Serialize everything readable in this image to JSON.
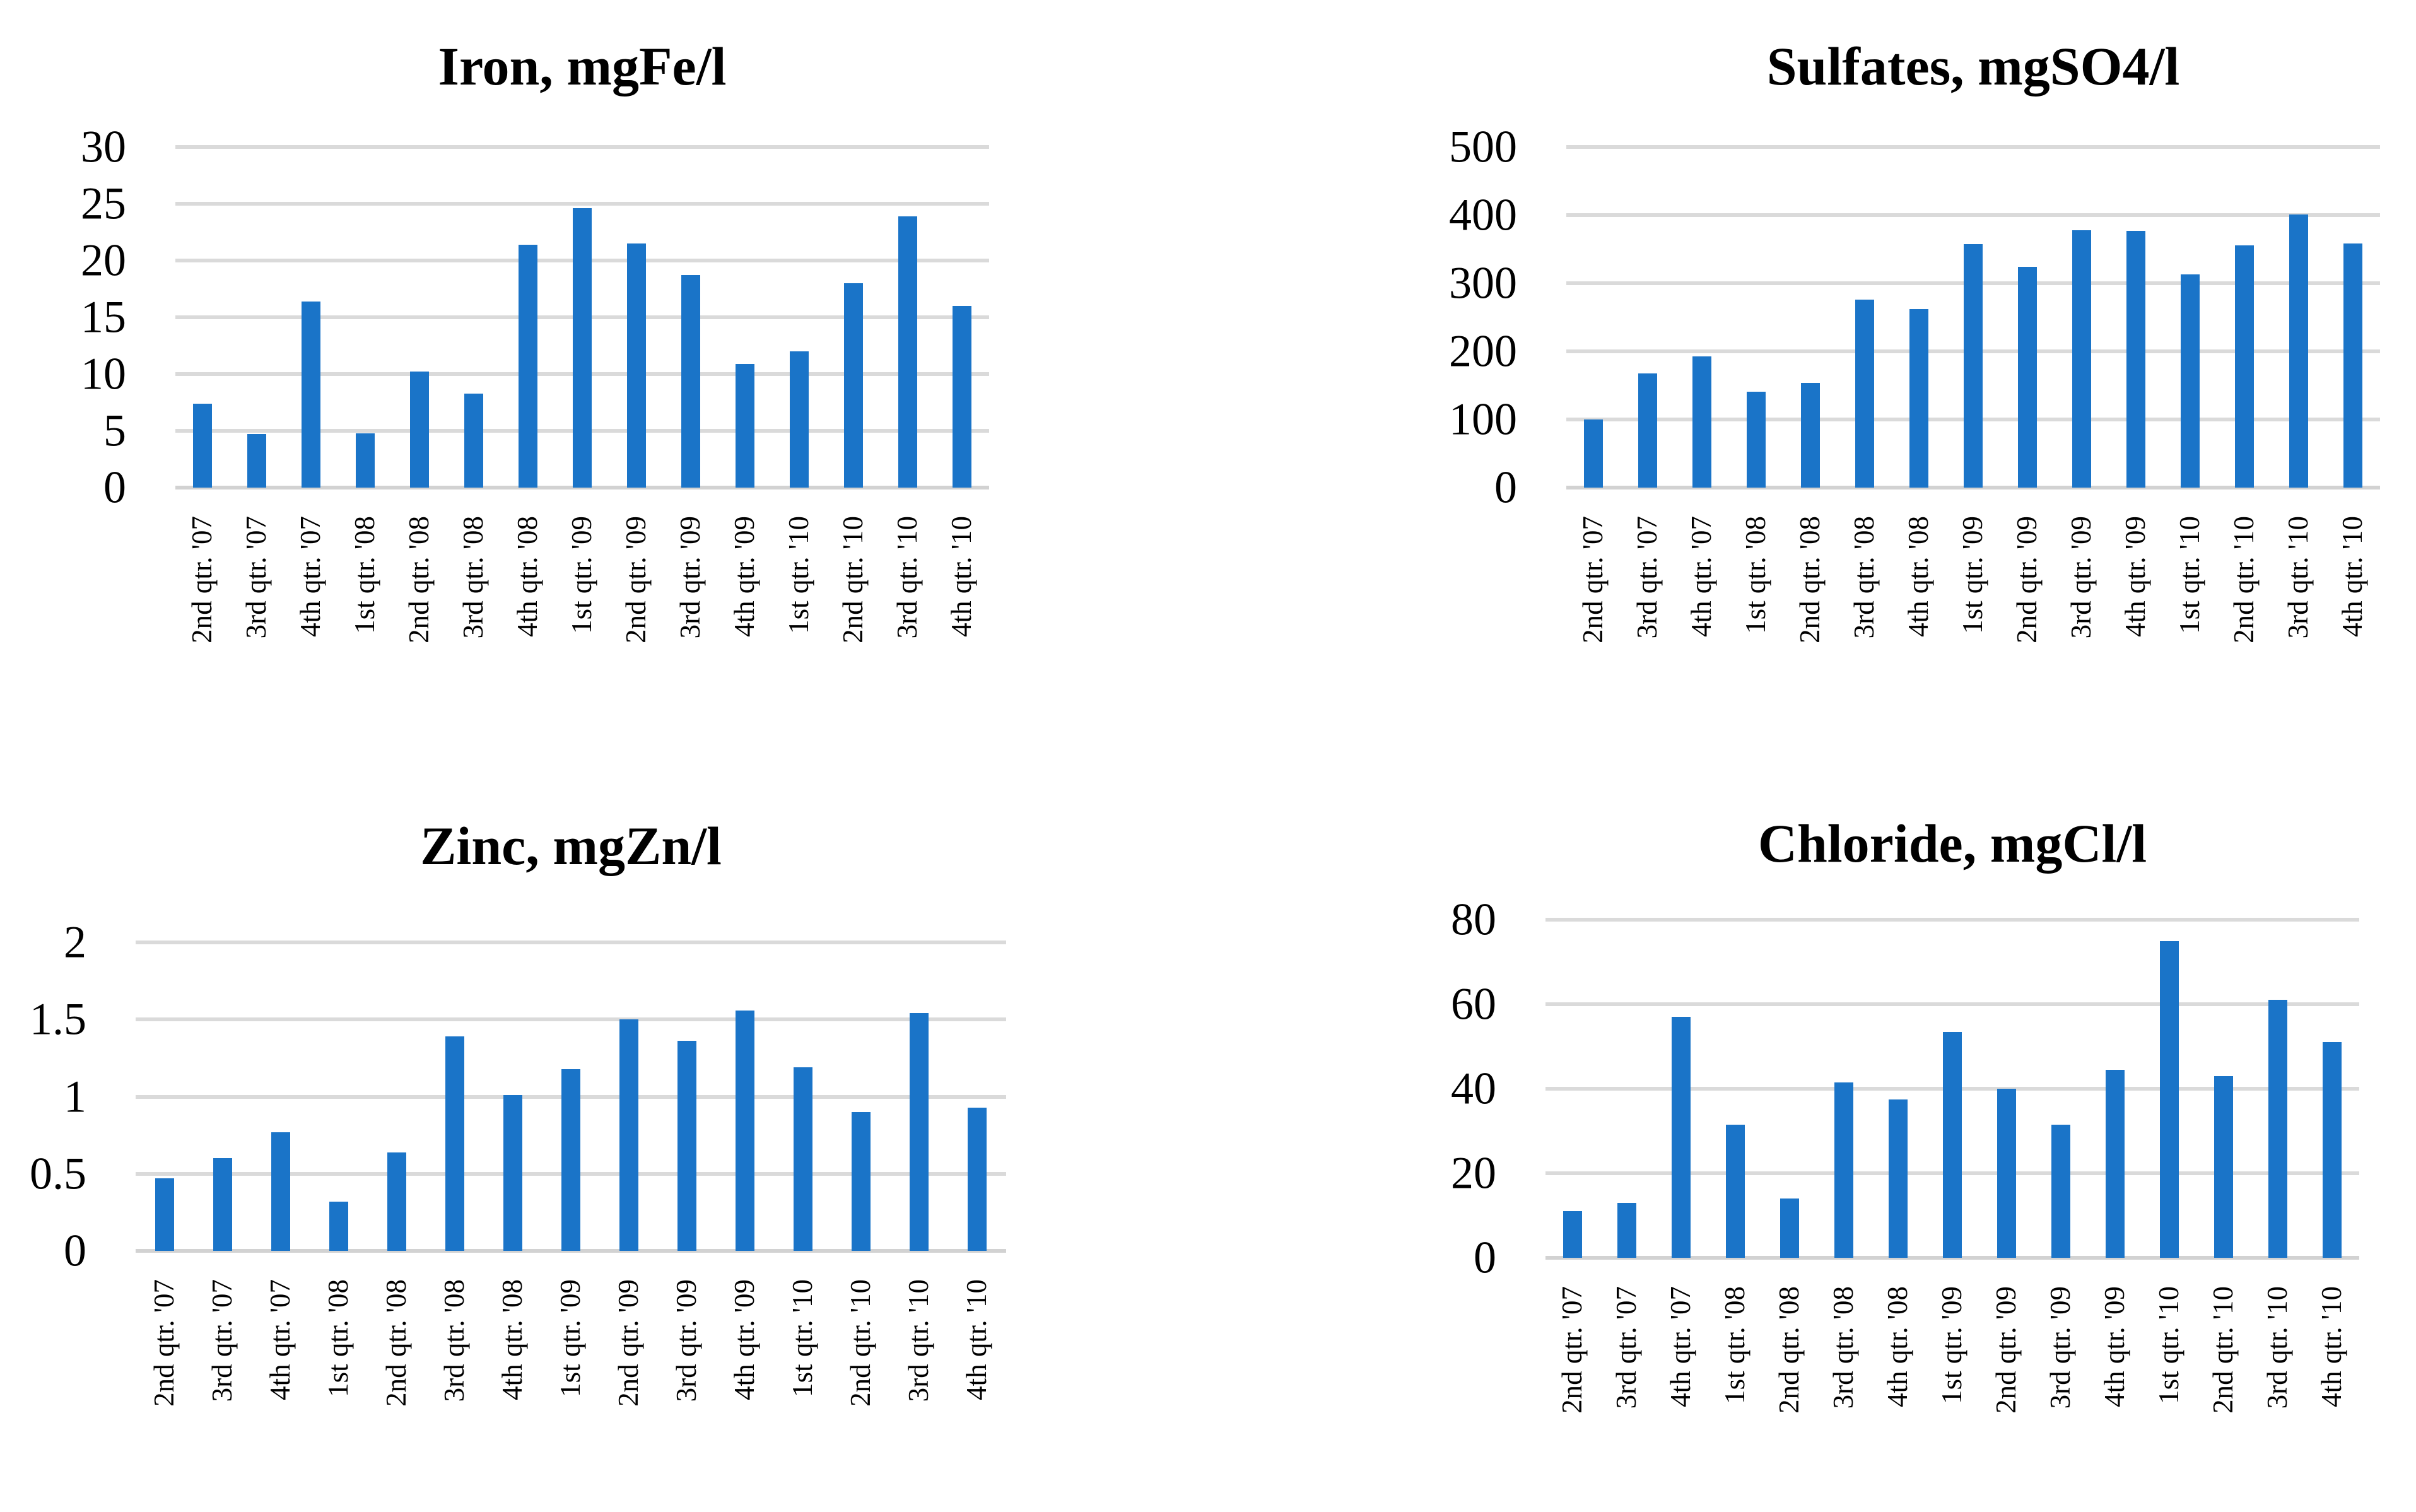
{
  "style": {
    "bar_color": "#1A74C8",
    "gridline_color": "#DADADA",
    "axis_line_color": "#D2D2D2",
    "text_color": "#000000",
    "background": "#FFFFFF"
  },
  "chart_data": [
    {
      "type": "bar",
      "title": "Iron, mgFe/l",
      "categories": [
        "2nd qtr. '07",
        "3rd qtr. '07",
        "4th qtr. '07",
        "1st qtr. '08",
        "2nd qtr. '08",
        "3rd qtr. '08",
        "4th qtr. '08",
        "1st qtr. '09",
        "2nd qtr. '09",
        "3rd qtr. '09",
        "4th qtr. '09",
        "1st qtr. '10",
        "2nd qtr. '10",
        "3rd qtr. '10",
        "4th qtr. '10"
      ],
      "values": [
        7.4,
        4.7,
        16.4,
        4.8,
        10.2,
        8.3,
        21.4,
        24.6,
        21.5,
        18.7,
        10.9,
        12,
        18,
        23.9,
        16
      ],
      "xlabel": "",
      "ylabel": "",
      "ylim": [
        0,
        30
      ],
      "ytick_values": [
        0,
        5,
        10,
        15,
        20,
        25,
        30
      ],
      "ytick_labels": [
        "0",
        "5",
        "10",
        "15",
        "20",
        "25",
        "30"
      ],
      "grid": true,
      "legend": null
    },
    {
      "type": "bar",
      "title": "Sulfates, mgSO4/l",
      "categories": [
        "2nd qtr. '07",
        "3rd qtr. '07",
        "4th qtr. '07",
        "1st qtr. '08",
        "2nd qtr. '08",
        "3rd qtr. '08",
        "4th qtr. '08",
        "1st qtr. '09",
        "2nd qtr. '09",
        "3rd qtr. '09",
        "4th qtr. '09",
        "1st qtr. '10",
        "2nd qtr. '10",
        "3rd qtr. '10",
        "4th qtr. '10"
      ],
      "values": [
        100,
        168,
        193,
        141,
        154,
        276,
        262,
        357,
        324,
        378,
        377,
        313,
        356,
        401,
        358
      ],
      "xlabel": "",
      "ylabel": "",
      "ylim": [
        0,
        500
      ],
      "ytick_values": [
        0,
        100,
        200,
        300,
        400,
        500
      ],
      "ytick_labels": [
        "0",
        "100",
        "200",
        "300",
        "400",
        "500"
      ],
      "grid": true,
      "legend": null
    },
    {
      "type": "bar",
      "title": "Zinc, mgZn/l",
      "categories": [
        "2nd qtr. '07",
        "3rd qtr. '07",
        "4th qtr. '07",
        "1st qtr. '08",
        "2nd qtr. '08",
        "3rd qtr. '08",
        "4th qtr. '08",
        "1st qtr. '09",
        "2nd qtr. '09",
        "3rd qtr. '09",
        "4th qtr. '09",
        "1st qtr. '10",
        "2nd qtr. '10",
        "3rd qtr. '10",
        "4th qtr. '10"
      ],
      "values": [
        0.47,
        0.6,
        0.77,
        0.32,
        0.64,
        1.39,
        1.01,
        1.18,
        1.5,
        1.36,
        1.56,
        1.19,
        0.9,
        1.54,
        0.93
      ],
      "xlabel": "",
      "ylabel": "",
      "ylim": [
        0,
        2
      ],
      "ytick_values": [
        0,
        0.5,
        1,
        1.5,
        2
      ],
      "ytick_labels": [
        "0",
        "0.5",
        "1",
        "1.5",
        "2"
      ],
      "grid": true,
      "legend": null
    },
    {
      "type": "bar",
      "title": "Chloride, mgCl/l",
      "categories": [
        "2nd qtr. '07",
        "3rd qtr. '07",
        "4th qtr. '07",
        "1st qtr. '08",
        "2nd qtr. '08",
        "3rd qtr. '08",
        "4th qtr. '08",
        "1st qtr. '09",
        "2nd qtr. '09",
        "3rd qtr. '09",
        "4th qtr. '09",
        "1st qtr. '10",
        "2nd qtr. '10",
        "3rd qtr. '10",
        "4th qtr. '10"
      ],
      "values": [
        11,
        13,
        57,
        31.5,
        14,
        41.5,
        37.5,
        53.5,
        40,
        31.5,
        44.5,
        75,
        43,
        61,
        51
      ],
      "xlabel": "",
      "ylabel": "",
      "ylim": [
        0,
        80
      ],
      "ytick_values": [
        0,
        20,
        40,
        60,
        80
      ],
      "ytick_labels": [
        "0",
        "20",
        "40",
        "60",
        "80"
      ],
      "grid": true,
      "legend": null
    }
  ]
}
